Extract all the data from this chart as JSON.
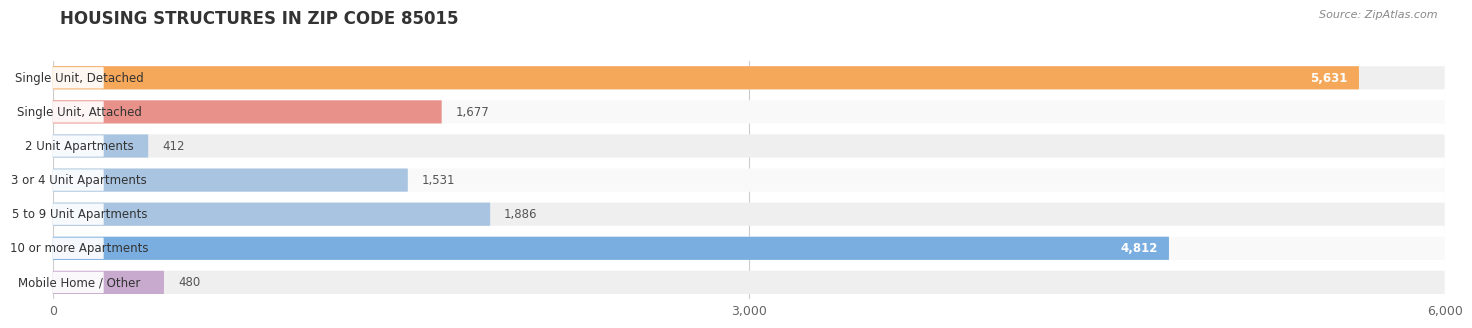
{
  "title": "HOUSING STRUCTURES IN ZIP CODE 85015",
  "source": "Source: ZipAtlas.com",
  "categories": [
    "Single Unit, Detached",
    "Single Unit, Attached",
    "2 Unit Apartments",
    "3 or 4 Unit Apartments",
    "5 to 9 Unit Apartments",
    "10 or more Apartments",
    "Mobile Home / Other"
  ],
  "values": [
    5631,
    1677,
    412,
    1531,
    1886,
    4812,
    480
  ],
  "bar_colors": [
    "#F5A85A",
    "#E8918A",
    "#A8C4E0",
    "#A8C4E0",
    "#A8C4E0",
    "#7AAEE0",
    "#C9AACF"
  ],
  "row_bg_colors": [
    "#EFEFEF",
    "#F9F9F9",
    "#EFEFEF",
    "#F9F9F9",
    "#EFEFEF",
    "#F9F9F9",
    "#EFEFEF"
  ],
  "xlim_max": 6000,
  "xticks": [
    0,
    3000,
    6000
  ],
  "title_fontsize": 12,
  "label_fontsize": 8.5,
  "value_fontsize": 8.5,
  "background_color": "#FFFFFF"
}
